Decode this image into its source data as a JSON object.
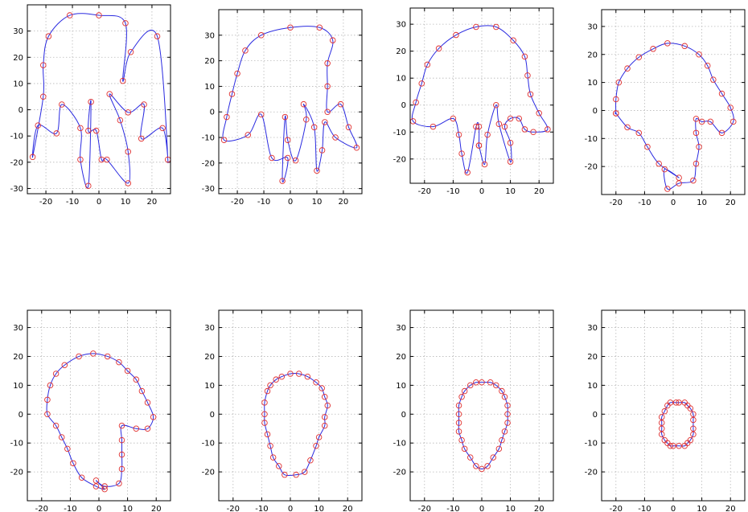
{
  "colors": {
    "curve": "#2a2ae0",
    "marker": "#e03030",
    "grid": "#b8b8b8"
  },
  "chart_data": [
    {
      "type": "line",
      "title": "",
      "xlabel": "",
      "ylabel": "",
      "xlim": [
        -27,
        27
      ],
      "ylim": [
        -32,
        40
      ],
      "xticks": [
        -20,
        -10,
        0,
        10,
        20
      ],
      "yticks": [
        -30,
        -20,
        -10,
        0,
        10,
        20,
        30
      ],
      "grid": true,
      "closed": true,
      "points": [
        [
          -25,
          -18
        ],
        [
          -23,
          -6
        ],
        [
          -16,
          -9
        ],
        [
          -14,
          2
        ],
        [
          -7,
          -7
        ],
        [
          -7,
          -19
        ],
        [
          -4,
          -29
        ],
        [
          -3,
          3
        ],
        [
          -4,
          -8
        ],
        [
          -1,
          -8
        ],
        [
          1,
          -19
        ],
        [
          3,
          -19
        ],
        [
          11,
          -28
        ],
        [
          11,
          -16
        ],
        [
          8,
          -4
        ],
        [
          4,
          6
        ],
        [
          11,
          -1
        ],
        [
          17,
          2
        ],
        [
          16,
          -11
        ],
        [
          24,
          -7
        ],
        [
          26,
          -19
        ],
        [
          22,
          28
        ],
        [
          12,
          22
        ],
        [
          9,
          11
        ],
        [
          10,
          33
        ],
        [
          0,
          36
        ],
        [
          -11,
          36
        ],
        [
          -19,
          28
        ],
        [
          -21,
          17
        ],
        [
          -21,
          5
        ]
      ]
    },
    {
      "type": "line",
      "title": "",
      "xlabel": "",
      "ylabel": "",
      "xlim": [
        -27,
        27
      ],
      "ylim": [
        -32,
        40
      ],
      "xticks": [
        -20,
        -10,
        0,
        10,
        20
      ],
      "yticks": [
        -30,
        -20,
        -10,
        0,
        10,
        20,
        30
      ],
      "grid": true,
      "closed": true,
      "points": [
        [
          -25,
          -11
        ],
        [
          -24,
          -2
        ],
        [
          -22,
          7
        ],
        [
          -20,
          15
        ],
        [
          -17,
          24
        ],
        [
          -11,
          30
        ],
        [
          0,
          33
        ],
        [
          11,
          33
        ],
        [
          16,
          28
        ],
        [
          14,
          19
        ],
        [
          14,
          10
        ],
        [
          14,
          0
        ],
        [
          19,
          3
        ],
        [
          22,
          -6
        ],
        [
          25,
          -14
        ],
        [
          17,
          -10
        ],
        [
          13,
          -4
        ],
        [
          12,
          -15
        ],
        [
          10,
          -23
        ],
        [
          9,
          -6
        ],
        [
          5,
          3
        ],
        [
          6,
          -3
        ],
        [
          2,
          -19
        ],
        [
          -1,
          -11
        ],
        [
          -2,
          -2
        ],
        [
          -3,
          -27
        ],
        [
          -1,
          -18
        ],
        [
          -7,
          -18
        ],
        [
          -11,
          -1
        ],
        [
          -16,
          -9
        ]
      ]
    },
    {
      "type": "line",
      "title": "",
      "xlabel": "",
      "ylabel": "",
      "xlim": [
        -25,
        25
      ],
      "ylim": [
        -29,
        36
      ],
      "xticks": [
        -20,
        -10,
        0,
        10,
        20
      ],
      "yticks": [
        -20,
        -10,
        0,
        10,
        20,
        30
      ],
      "grid": true,
      "closed": true,
      "points": [
        [
          -24,
          -6
        ],
        [
          -23,
          1
        ],
        [
          -21,
          8
        ],
        [
          -19,
          15
        ],
        [
          -15,
          21
        ],
        [
          -9,
          26
        ],
        [
          -2,
          29
        ],
        [
          5,
          29
        ],
        [
          11,
          24
        ],
        [
          15,
          18
        ],
        [
          16,
          11
        ],
        [
          17,
          4
        ],
        [
          20,
          -3
        ],
        [
          23,
          -9
        ],
        [
          18,
          -10
        ],
        [
          15,
          -9
        ],
        [
          13,
          -5
        ],
        [
          10,
          -5
        ],
        [
          8,
          -8
        ],
        [
          10,
          -14
        ],
        [
          10,
          -21
        ],
        [
          6,
          -7
        ],
        [
          5,
          0
        ],
        [
          2,
          -11
        ],
        [
          1,
          -22
        ],
        [
          -1,
          -15
        ],
        [
          -1,
          -15
        ],
        [
          -1,
          -8
        ],
        [
          -2,
          -8
        ],
        [
          -5,
          -25
        ],
        [
          -7,
          -18
        ],
        [
          -8,
          -11
        ],
        [
          -10,
          -5
        ],
        [
          -17,
          -8
        ]
      ]
    },
    {
      "type": "line",
      "title": "",
      "xlabel": "",
      "ylabel": "",
      "xlim": [
        -25,
        25
      ],
      "ylim": [
        -30,
        36
      ],
      "xticks": [
        -20,
        -10,
        0,
        10,
        20
      ],
      "yticks": [
        -20,
        -10,
        0,
        10,
        20,
        30
      ],
      "grid": true,
      "closed": true,
      "points": [
        [
          -20,
          -1
        ],
        [
          -20,
          4
        ],
        [
          -19,
          10
        ],
        [
          -16,
          15
        ],
        [
          -12,
          19
        ],
        [
          -7,
          22
        ],
        [
          -2,
          24
        ],
        [
          4,
          23
        ],
        [
          9,
          20
        ],
        [
          12,
          16
        ],
        [
          14,
          11
        ],
        [
          17,
          6
        ],
        [
          20,
          1
        ],
        [
          21,
          -4
        ],
        [
          17,
          -8
        ],
        [
          13,
          -4
        ],
        [
          10,
          -4
        ],
        [
          8,
          -3
        ],
        [
          8,
          -8
        ],
        [
          9,
          -13
        ],
        [
          8,
          -19
        ],
        [
          7,
          -25
        ],
        [
          2,
          -26
        ],
        [
          -2,
          -28
        ],
        [
          -3,
          -21
        ],
        [
          2,
          -24
        ],
        [
          -5,
          -19
        ],
        [
          -9,
          -13
        ],
        [
          -12,
          -8
        ],
        [
          -16,
          -6
        ],
        [
          -20,
          -1
        ]
      ]
    },
    {
      "type": "line",
      "title": "",
      "xlabel": "",
      "ylabel": "",
      "xlim": [
        -25,
        25
      ],
      "ylim": [
        -30,
        36
      ],
      "xticks": [
        -20,
        -10,
        0,
        10,
        20
      ],
      "yticks": [
        -20,
        -10,
        0,
        10,
        20,
        30
      ],
      "grid": true,
      "closed": true,
      "points": [
        [
          -18,
          0
        ],
        [
          -18,
          5
        ],
        [
          -17,
          10
        ],
        [
          -15,
          14
        ],
        [
          -12,
          17
        ],
        [
          -7,
          20
        ],
        [
          -2,
          21
        ],
        [
          3,
          20
        ],
        [
          7,
          18
        ],
        [
          10,
          15
        ],
        [
          13,
          12
        ],
        [
          15,
          8
        ],
        [
          17,
          4
        ],
        [
          19,
          -1
        ],
        [
          17,
          -5
        ],
        [
          13,
          -5
        ],
        [
          8,
          -4
        ],
        [
          8,
          -9
        ],
        [
          8,
          -14
        ],
        [
          8,
          -19
        ],
        [
          7,
          -24
        ],
        [
          2,
          -25
        ],
        [
          -1,
          -23
        ],
        [
          2,
          -26
        ],
        [
          -1,
          -25
        ],
        [
          -6,
          -22
        ],
        [
          -9,
          -17
        ],
        [
          -11,
          -12
        ],
        [
          -13,
          -8
        ],
        [
          -15,
          -4
        ]
      ]
    },
    {
      "type": "line",
      "title": "",
      "xlabel": "",
      "ylabel": "",
      "xlim": [
        -25,
        25
      ],
      "ylim": [
        -30,
        36
      ],
      "xticks": [
        -20,
        -10,
        0,
        10,
        20
      ],
      "yticks": [
        -20,
        -10,
        0,
        10,
        20,
        30
      ],
      "grid": true,
      "closed": true,
      "points": [
        [
          -9,
          0
        ],
        [
          -9,
          4
        ],
        [
          -8,
          8
        ],
        [
          -7,
          10
        ],
        [
          -5,
          12
        ],
        [
          -3,
          13
        ],
        [
          0,
          14
        ],
        [
          3,
          14
        ],
        [
          6,
          13
        ],
        [
          9,
          11
        ],
        [
          11,
          9
        ],
        [
          12,
          6
        ],
        [
          13,
          3
        ],
        [
          12,
          -1
        ],
        [
          12,
          -4
        ],
        [
          10,
          -8
        ],
        [
          9,
          -11
        ],
        [
          7,
          -16
        ],
        [
          5,
          -20
        ],
        [
          2,
          -21
        ],
        [
          -2,
          -21
        ],
        [
          -4,
          -18
        ],
        [
          -6,
          -15
        ],
        [
          -7,
          -11
        ],
        [
          -8,
          -7
        ],
        [
          -9,
          -3
        ]
      ]
    },
    {
      "type": "line",
      "title": "",
      "xlabel": "",
      "ylabel": "",
      "xlim": [
        -25,
        25
      ],
      "ylim": [
        -30,
        36
      ],
      "xticks": [
        -20,
        -10,
        0,
        10,
        20
      ],
      "yticks": [
        -20,
        -10,
        0,
        10,
        20,
        30
      ],
      "grid": true,
      "closed": true,
      "points": [
        [
          -8,
          0
        ],
        [
          -8,
          3
        ],
        [
          -7,
          6
        ],
        [
          -6,
          8
        ],
        [
          -4,
          10
        ],
        [
          -2,
          11
        ],
        [
          0,
          11
        ],
        [
          3,
          11
        ],
        [
          5,
          10
        ],
        [
          7,
          8
        ],
        [
          8,
          6
        ],
        [
          9,
          3
        ],
        [
          9,
          0
        ],
        [
          9,
          -3
        ],
        [
          8,
          -6
        ],
        [
          7,
          -9
        ],
        [
          6,
          -12
        ],
        [
          4,
          -15
        ],
        [
          2,
          -18
        ],
        [
          0,
          -19
        ],
        [
          -2,
          -18
        ],
        [
          -4,
          -15
        ],
        [
          -6,
          -12
        ],
        [
          -7,
          -9
        ],
        [
          -8,
          -6
        ],
        [
          -8,
          -3
        ]
      ]
    },
    {
      "type": "line",
      "title": "",
      "xlabel": "",
      "ylabel": "",
      "xlim": [
        -25,
        25
      ],
      "ylim": [
        -30,
        36
      ],
      "xticks": [
        -20,
        -10,
        0,
        10,
        20
      ],
      "yticks": [
        -20,
        -10,
        0,
        10,
        20,
        30
      ],
      "grid": true,
      "closed": true,
      "points": [
        [
          -4,
          -3
        ],
        [
          -4,
          -1
        ],
        [
          -3,
          1
        ],
        [
          -2,
          3
        ],
        [
          -1,
          4
        ],
        [
          1,
          4
        ],
        [
          2,
          4
        ],
        [
          4,
          4
        ],
        [
          5,
          3
        ],
        [
          6,
          2
        ],
        [
          7,
          0
        ],
        [
          7,
          -2
        ],
        [
          7,
          -5
        ],
        [
          7,
          -7
        ],
        [
          6,
          -9
        ],
        [
          5,
          -10
        ],
        [
          4,
          -11
        ],
        [
          2,
          -11
        ],
        [
          0,
          -11
        ],
        [
          -1,
          -11
        ],
        [
          -2,
          -10
        ],
        [
          -3,
          -9
        ],
        [
          -4,
          -7
        ],
        [
          -4,
          -5
        ]
      ]
    }
  ]
}
